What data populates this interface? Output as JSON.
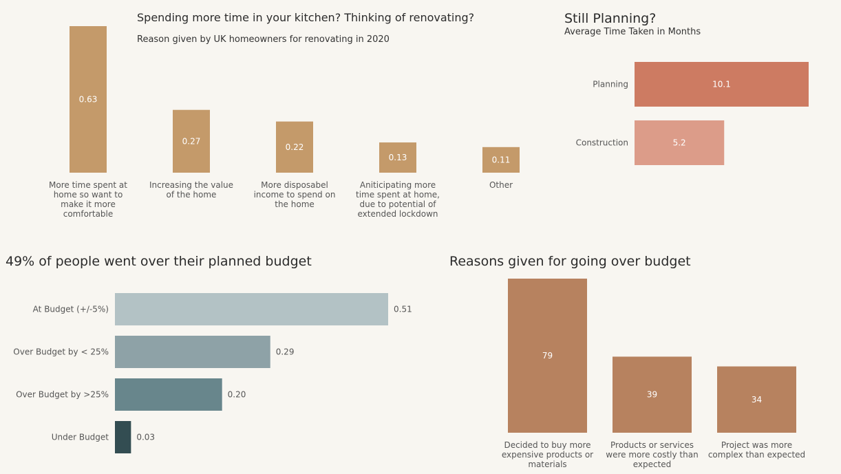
{
  "chart_data": [
    {
      "type": "bar",
      "title": "Spending more time in your kitchen? Thinking of renovating?",
      "subtitle": "Reason given by UK homeowners for renovating in 2020",
      "categories": [
        [
          "More time spent at",
          "home so want to",
          "make it more",
          "comfortable"
        ],
        [
          "Increasing the value",
          "of the home"
        ],
        [
          "More disposabel",
          "income to spend on",
          "the home"
        ],
        [
          "Aniticipating more",
          "time spent at home,",
          "due to potential of",
          "extended lockdown"
        ],
        [
          "Other"
        ]
      ],
      "values": [
        0.63,
        0.27,
        0.22,
        0.13,
        0.11
      ],
      "value_labels": [
        "0.63",
        "0.27",
        "0.22",
        "0.13",
        "0.11"
      ],
      "ylim": [
        0,
        0.63
      ],
      "color": "#c49a6a"
    },
    {
      "type": "bar",
      "orientation": "horizontal",
      "title": "Still Planning?",
      "subtitle": "Average Time Taken in Months",
      "categories": [
        "Planning",
        "Construction"
      ],
      "values": [
        10.1,
        5.2
      ],
      "value_labels": [
        "10.1",
        "5.2"
      ],
      "colors": [
        "#cd7b62",
        "#dc9c89"
      ],
      "xlim": [
        0,
        10.1
      ]
    },
    {
      "type": "bar",
      "orientation": "horizontal",
      "title": "49% of people went over their planned budget",
      "categories": [
        "At Budget (+/-5%)",
        "Over Budget by < 25%",
        "Over Budget by >25%",
        "Under Budget"
      ],
      "values": [
        0.51,
        0.29,
        0.2,
        0.03
      ],
      "value_labels": [
        "0.51",
        "0.29",
        "0.20",
        "0.03"
      ],
      "colors": [
        "#b3c2c5",
        "#8ea2a7",
        "#68868c",
        "#334d52"
      ],
      "xlim": [
        0,
        0.51
      ]
    },
    {
      "type": "bar",
      "title": "Reasons given for going over budget",
      "categories": [
        [
          "Decided to buy more",
          "expensive products or",
          "materials"
        ],
        [
          "Products or services",
          "were more costly than",
          "expected"
        ],
        [
          "Project was more",
          "complex than expected"
        ]
      ],
      "values": [
        79,
        39,
        34
      ],
      "value_labels": [
        "79",
        "39",
        "34"
      ],
      "ylim": [
        0,
        79
      ],
      "color": "#b7825f"
    }
  ]
}
